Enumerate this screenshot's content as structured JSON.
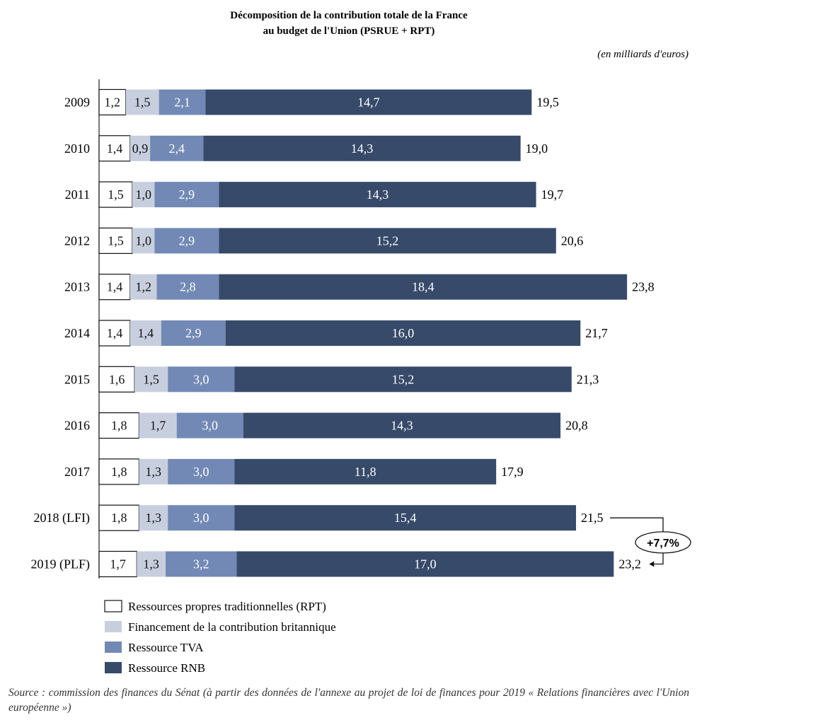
{
  "chart_data": {
    "type": "bar",
    "orientation": "horizontal",
    "stacked": true,
    "title_line1": "Décomposition de la contribution totale de la France",
    "title_line2": "au budget de l'Union (PSRUE + RPT)",
    "unit_note": "(en milliards d'euros)",
    "categories": [
      "2009",
      "2010",
      "2011",
      "2012",
      "2013",
      "2014",
      "2015",
      "2016",
      "2017",
      "2018 (LFI)",
      "2019 (PLF)"
    ],
    "series": [
      {
        "name": "Ressources propres traditionnelles (RPT)",
        "color": "#ffffff",
        "text_color": "#111111",
        "values": [
          1.2,
          1.4,
          1.5,
          1.5,
          1.4,
          1.4,
          1.6,
          1.8,
          1.8,
          1.8,
          1.7
        ],
        "labels": [
          "1,2",
          "1,4",
          "1,5",
          "1,5",
          "1,4",
          "1,4",
          "1,6",
          "1,8",
          "1,8",
          "1,8",
          "1,7"
        ]
      },
      {
        "name": "Financement de la contribution britannique",
        "color": "#c7cfdf",
        "text_color": "#111111",
        "values": [
          1.5,
          0.9,
          1.0,
          1.0,
          1.2,
          1.4,
          1.5,
          1.7,
          1.3,
          1.3,
          1.3
        ],
        "labels": [
          "1,5",
          "0,9",
          "1,0",
          "1,0",
          "1,2",
          "1,4",
          "1,5",
          "1,7",
          "1,3",
          "1,3",
          "1,3"
        ]
      },
      {
        "name": "Ressource TVA",
        "color": "#7289b5",
        "text_color": "#ffffff",
        "values": [
          2.1,
          2.4,
          2.9,
          2.9,
          2.8,
          2.9,
          3.0,
          3.0,
          3.0,
          3.0,
          3.2
        ],
        "labels": [
          "2,1",
          "2,4",
          "2,9",
          "2,9",
          "2,8",
          "2,9",
          "3,0",
          "3,0",
          "3,0",
          "3,0",
          "3,2"
        ]
      },
      {
        "name": "Ressource RNB",
        "color": "#374a6a",
        "text_color": "#ffffff",
        "values": [
          14.7,
          14.3,
          14.3,
          15.2,
          18.4,
          16.0,
          15.2,
          14.3,
          11.8,
          15.4,
          17.0
        ],
        "labels": [
          "14,7",
          "14,3",
          "14,3",
          "15,2",
          "18,4",
          "16,0",
          "15,2",
          "14,3",
          "11,8",
          "15,4",
          "17,0"
        ]
      }
    ],
    "totals": [
      19.5,
      19.0,
      19.7,
      20.6,
      23.8,
      21.7,
      21.3,
      20.8,
      17.9,
      21.5,
      23.2
    ],
    "total_labels": [
      "19,5",
      "19,0",
      "19,7",
      "20,6",
      "23,8",
      "21,7",
      "21,3",
      "20,8",
      "17,9",
      "21,5",
      "23,2"
    ],
    "annotation": {
      "text": "+7,7%",
      "from": "2018 (LFI)",
      "to": "2019 (PLF)"
    },
    "xlim": [
      0,
      26
    ],
    "legend_position": "bottom-left"
  },
  "source_note": "Source : commission des finances du Sénat (à partir des données de l'annexe au projet de loi de finances pour 2019 « Relations financières avec l'Union européenne »)"
}
